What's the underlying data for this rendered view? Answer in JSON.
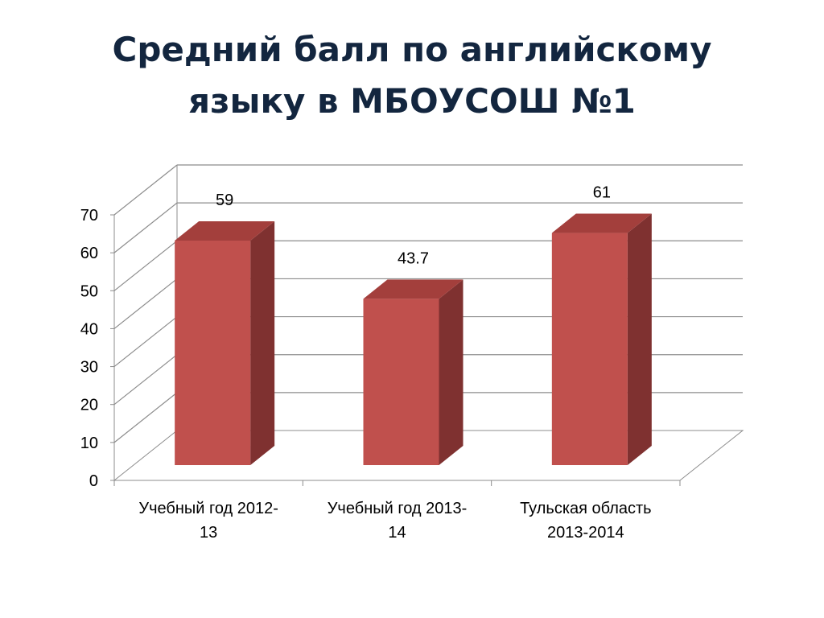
{
  "slide": {
    "title_line1": "Средний балл по английскому",
    "title_line2": "языку в МБОУСОШ №1"
  },
  "chart_data": {
    "type": "bar",
    "style": "3d-column",
    "categories": [
      [
        "Учебный год 2012-",
        "13"
      ],
      [
        "Учебный год 2013-",
        "14"
      ],
      [
        "Тульская область",
        "2013-2014"
      ]
    ],
    "values": [
      59,
      43.7,
      61
    ],
    "value_labels": [
      "59",
      "43.7",
      "61"
    ],
    "y_ticks": [
      "0",
      "10",
      "20",
      "30",
      "40",
      "50",
      "60",
      "70"
    ],
    "ylim": [
      0,
      70
    ],
    "grid": true,
    "legend": "none",
    "colors": {
      "bar_front": "#c0504d",
      "bar_top": "#a33f3c",
      "bar_side": "#7f3130",
      "gridline": "#8c8c8c",
      "text": "#000000",
      "title": "#13263f"
    }
  }
}
